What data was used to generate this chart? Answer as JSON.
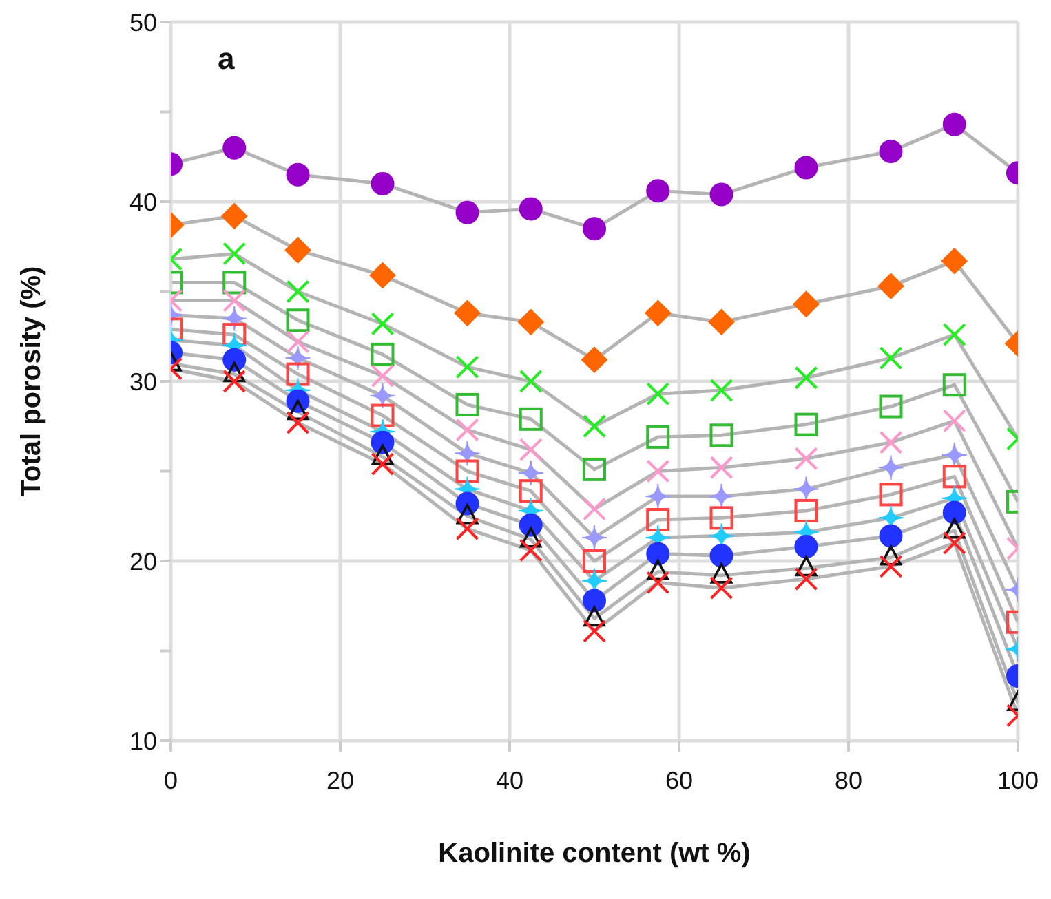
{
  "chart_data": {
    "type": "line",
    "xlabel": "Kaolinite content (wt %)",
    "ylabel": "Total porosity (%)",
    "annotations": [
      "a"
    ],
    "x": [
      0,
      7.5,
      15,
      25,
      35,
      42.5,
      50,
      57.5,
      65,
      75,
      85,
      92.5,
      100
    ],
    "xlim": [
      0,
      100
    ],
    "xticks": [
      0,
      20,
      40,
      60,
      80,
      100
    ],
    "ylim": [
      10,
      50
    ],
    "yticks": [
      10,
      {
        "value": 15,
        "label": null
      },
      20,
      {
        "value": 25,
        "label": null
      },
      30,
      {
        "value": 35,
        "label": null
      },
      40,
      {
        "value": 45,
        "label": null
      },
      50
    ],
    "grid": true,
    "line_style": "solid",
    "series": [
      {
        "color": "#9400c8",
        "marker": "circle",
        "values": [
          42.1,
          43.0,
          41.5,
          41.0,
          39.4,
          39.6,
          38.5,
          40.6,
          40.4,
          41.9,
          42.8,
          44.3,
          41.6
        ]
      },
      {
        "color": "#ff6600",
        "marker": "diamond",
        "values": [
          38.7,
          39.2,
          37.3,
          35.9,
          33.8,
          33.3,
          31.2,
          33.8,
          33.3,
          34.3,
          35.3,
          36.7,
          32.1
        ]
      },
      {
        "color": "#22ee22",
        "marker": "cross",
        "values": [
          36.8,
          37.1,
          35.0,
          33.2,
          30.8,
          30.0,
          27.5,
          29.3,
          29.5,
          30.2,
          31.3,
          32.6,
          26.8
        ]
      },
      {
        "color": "#33bb33",
        "marker": "square",
        "values": [
          35.5,
          35.5,
          33.4,
          31.5,
          28.7,
          27.9,
          25.1,
          26.9,
          27.0,
          27.6,
          28.6,
          29.8,
          23.3
        ]
      },
      {
        "color": "#ff99cc",
        "marker": "cross",
        "values": [
          34.5,
          34.5,
          32.2,
          30.3,
          27.3,
          26.2,
          22.9,
          25.0,
          25.2,
          25.7,
          26.6,
          27.8,
          20.7
        ]
      },
      {
        "color": "#9999ff",
        "marker": "star",
        "values": [
          33.7,
          33.5,
          31.3,
          29.2,
          26.0,
          24.9,
          21.3,
          23.6,
          23.6,
          24.0,
          25.2,
          25.9,
          18.4
        ]
      },
      {
        "color": "#ff4444",
        "marker": "square",
        "values": [
          32.9,
          32.6,
          30.4,
          28.1,
          25.0,
          23.9,
          20.0,
          22.3,
          22.4,
          22.8,
          23.7,
          24.7,
          16.6
        ]
      },
      {
        "color": "#22ccff",
        "marker": "star",
        "values": [
          32.3,
          32.0,
          29.5,
          27.2,
          24.0,
          22.8,
          18.9,
          21.3,
          21.4,
          21.6,
          22.4,
          23.5,
          15.1
        ]
      },
      {
        "color": "#2233ff",
        "marker": "circle",
        "values": [
          31.6,
          31.2,
          28.9,
          26.6,
          23.2,
          22.0,
          17.8,
          20.4,
          20.3,
          20.8,
          21.4,
          22.7,
          13.6
        ]
      },
      {
        "color": "#111111",
        "marker": "triangle",
        "values": [
          31.0,
          30.4,
          28.3,
          25.8,
          22.5,
          21.2,
          16.8,
          19.4,
          19.2,
          19.6,
          20.2,
          21.7,
          12.1
        ]
      },
      {
        "color": "#ff2222",
        "marker": "cross",
        "values": [
          30.7,
          30.0,
          27.7,
          25.4,
          21.8,
          20.6,
          16.1,
          18.8,
          18.5,
          19.0,
          19.7,
          21.0,
          11.4
        ]
      }
    ]
  }
}
